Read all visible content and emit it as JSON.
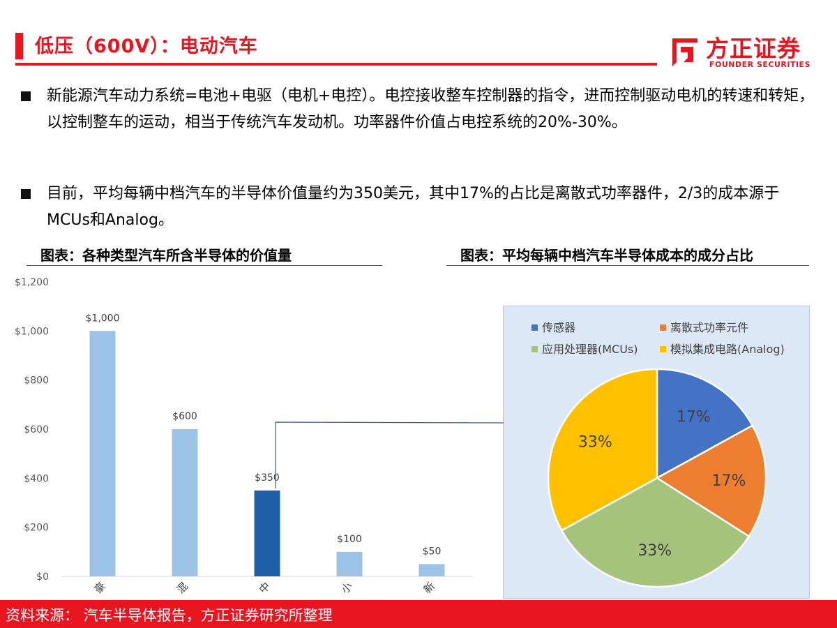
{
  "header": {
    "title": "低压（600V）：电动汽车",
    "logo_cn": "方正证券",
    "logo_en": "FOUNDER SECURITIES"
  },
  "bullets": [
    "新能源汽车动力系统=电池+电驱（电机+电控）。电控接收整车控制器的指令，进而控制驱动电机的转速和转矩，以控制整车的运动，相当于传统汽车发动机。功率器件价值占电控系统的20%-30%。",
    "目前，平均每辆中档汽车的半导体价值量约为350美元，其中17%的占比是离散式功率器件，2/3的成本源于MCUs和Analog。"
  ],
  "captions": {
    "left": "图表：各种类型汽车所含半导体的价值量",
    "right": "图表：平均每辆中档汽车半导体成本的成分占比"
  },
  "colors": {
    "brand_red": "#e8141f",
    "bar_light": "#9dc3e6",
    "bar_highlight": "#1f5fa8",
    "pie_sensor": "#4472c4",
    "pie_discrete": "#ed7d31",
    "pie_mcu": "#a5c37a",
    "pie_analog": "#ffc000"
  },
  "chart_data": [
    {
      "type": "bar",
      "title": "",
      "categories": [
        "豪",
        "混",
        "中",
        "小",
        "新"
      ],
      "values": [
        1000,
        600,
        350,
        100,
        50
      ],
      "value_labels": [
        "$1,000",
        "$600",
        "$350",
        "$100",
        "$50"
      ],
      "highlight_index": 2,
      "ylim": [
        0,
        1200
      ],
      "yticks": [
        0,
        200,
        400,
        600,
        800,
        1000,
        1200
      ],
      "ytick_labels": [
        "$0",
        "$200",
        "$400",
        "$600",
        "$800",
        "$1,000",
        "$1,200"
      ],
      "grid": false,
      "xlabel": "",
      "ylabel": ""
    },
    {
      "type": "pie",
      "title": "",
      "labels": [
        "传感器",
        "离散式功率元件",
        "应用处理器(MCUs)",
        "模拟集成电路(Analog)"
      ],
      "values": [
        17,
        17,
        33,
        33
      ],
      "value_labels": [
        "17%",
        "17%",
        "33%",
        "33%"
      ],
      "legend_position": "top"
    }
  ],
  "footer": {
    "source": "资料来源： 汽车半导体报告，方正证券研究所整理"
  }
}
